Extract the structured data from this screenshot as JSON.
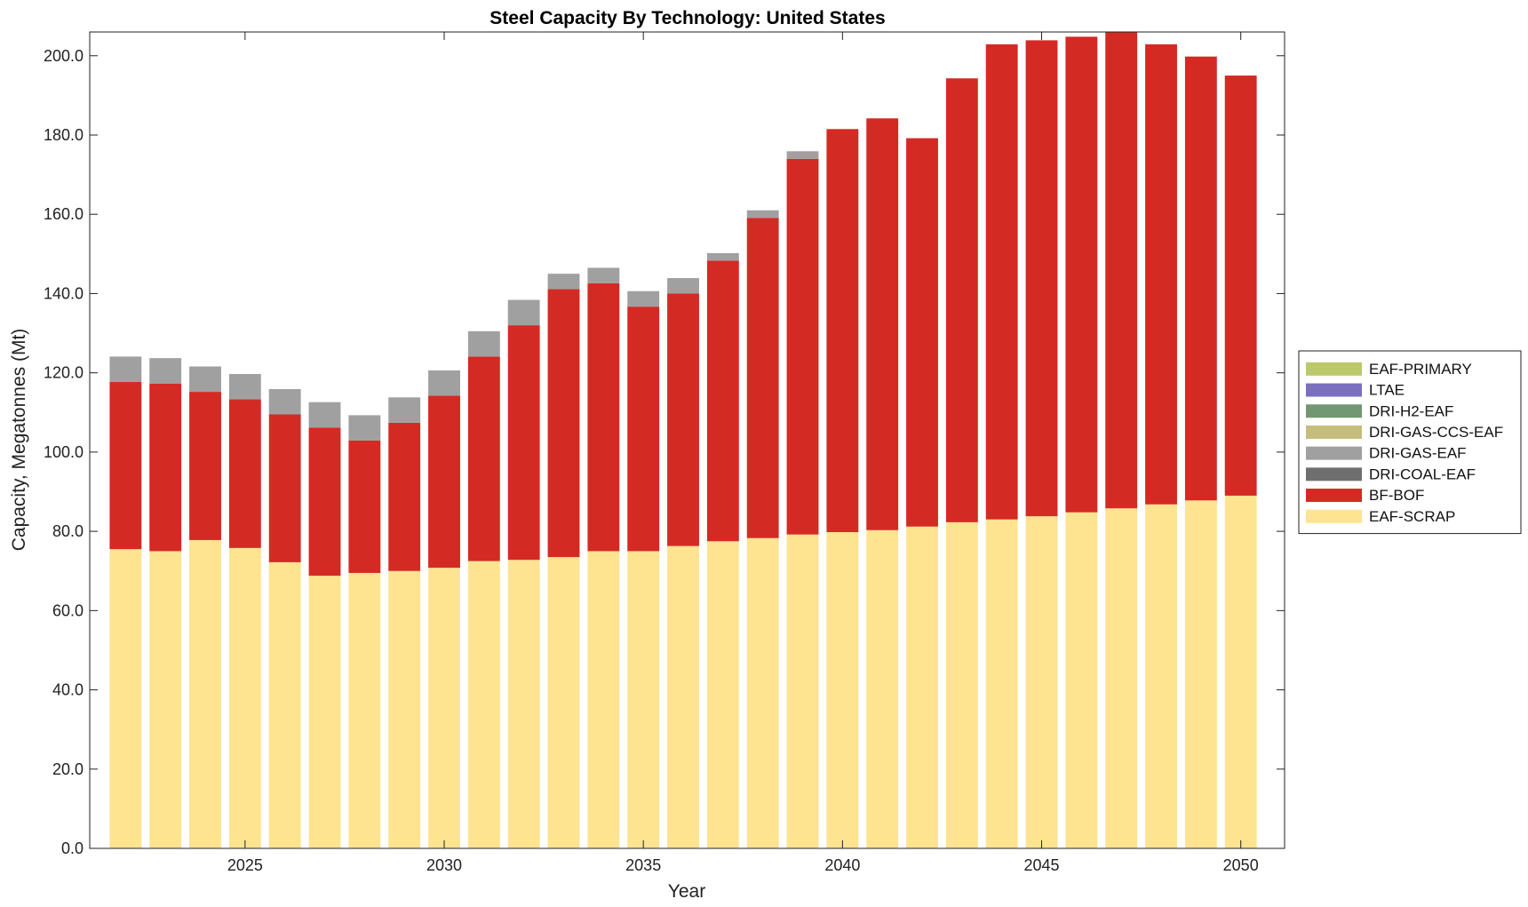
{
  "chart_data": {
    "type": "bar",
    "stacked": true,
    "title": "Steel Capacity By Technology: United States",
    "xlabel": "Year",
    "ylabel": "Capacity, Megatonnes (Mt)",
    "ylim": [
      0,
      206
    ],
    "yticks": [
      0,
      20,
      40,
      60,
      80,
      100,
      120,
      140,
      160,
      180,
      200
    ],
    "ytick_labels": [
      "0.0",
      "20.0",
      "40.0",
      "60.0",
      "80.0",
      "100.0",
      "120.0",
      "140.0",
      "160.0",
      "180.0",
      "200.0"
    ],
    "xlim": [
      2021.1,
      2051.1
    ],
    "xticks": [
      2025,
      2030,
      2035,
      2040,
      2045,
      2050
    ],
    "xtick_labels": [
      "2025",
      "2030",
      "2035",
      "2040",
      "2045",
      "2050"
    ],
    "grid": false,
    "legend_position": "right",
    "x": [
      2022,
      2023,
      2024,
      2025,
      2026,
      2027,
      2028,
      2029,
      2030,
      2031,
      2032,
      2033,
      2034,
      2035,
      2036,
      2037,
      2038,
      2039,
      2040,
      2041,
      2042,
      2043,
      2044,
      2045,
      2046,
      2047,
      2048,
      2049,
      2050
    ],
    "series": [
      {
        "name": "EAF-SCRAP",
        "color": "#fee391",
        "values": [
          75.5,
          75.0,
          77.8,
          75.8,
          72.2,
          68.8,
          69.5,
          70.0,
          70.8,
          72.5,
          72.8,
          73.5,
          75.0,
          75.0,
          76.3,
          77.5,
          78.3,
          79.2,
          79.8,
          80.3,
          81.2,
          82.3,
          83.0,
          83.8,
          84.8,
          85.8,
          86.8,
          87.8,
          89.0
        ]
      },
      {
        "name": "BF-BOF",
        "color": "#d42a24",
        "values": [
          42.2,
          42.3,
          37.4,
          37.5,
          37.3,
          37.4,
          33.4,
          37.4,
          43.4,
          51.6,
          59.2,
          67.6,
          67.6,
          61.7,
          63.7,
          70.8,
          80.8,
          94.8,
          101.7,
          103.9,
          98.0,
          112.0,
          119.9,
          120.1,
          120.0,
          120.1,
          116.1,
          112.0,
          106.0
        ]
      },
      {
        "name": "DRI-COAL-EAF",
        "color": "#6f6f6f",
        "values": [
          0,
          0,
          0,
          0,
          0,
          0,
          0,
          0,
          0,
          0,
          0,
          0,
          0,
          0,
          0,
          0,
          0,
          0,
          0,
          0,
          0,
          0,
          0,
          0,
          0,
          0,
          0,
          0,
          0
        ]
      },
      {
        "name": "DRI-GAS-EAF",
        "color": "#a0a0a0",
        "values": [
          6.4,
          6.4,
          6.4,
          6.4,
          6.4,
          6.4,
          6.4,
          6.4,
          6.4,
          6.4,
          6.4,
          3.9,
          3.9,
          3.9,
          3.9,
          1.9,
          1.9,
          1.9,
          0,
          0,
          0,
          0,
          0,
          0,
          0,
          0,
          0,
          0,
          0
        ]
      },
      {
        "name": "DRI-GAS-CCS-EAF",
        "color": "#c6bc7c",
        "values": [
          0,
          0,
          0,
          0,
          0,
          0,
          0,
          0,
          0,
          0,
          0,
          0,
          0,
          0,
          0,
          0,
          0,
          0,
          0,
          0,
          0,
          0,
          0,
          0,
          0,
          0,
          0,
          0,
          0
        ]
      },
      {
        "name": "DRI-H2-EAF",
        "color": "#739673",
        "values": [
          0,
          0,
          0,
          0,
          0,
          0,
          0,
          0,
          0,
          0,
          0,
          0,
          0,
          0,
          0,
          0,
          0,
          0,
          0,
          0,
          0,
          0,
          0,
          0,
          0,
          0,
          0,
          0,
          0
        ]
      },
      {
        "name": "LTAE",
        "color": "#7b6fc0",
        "values": [
          0,
          0,
          0,
          0,
          0,
          0,
          0,
          0,
          0,
          0,
          0,
          0,
          0,
          0,
          0,
          0,
          0,
          0,
          0,
          0,
          0,
          0,
          0,
          0,
          0,
          0,
          0,
          0,
          0
        ]
      },
      {
        "name": "EAF-PRIMARY",
        "color": "#bcc96a",
        "values": [
          0,
          0,
          0,
          0,
          0,
          0,
          0,
          0,
          0,
          0,
          0,
          0,
          0,
          0,
          0,
          0,
          0,
          0,
          0,
          0,
          0,
          0,
          0,
          0,
          0,
          0,
          0,
          0,
          0
        ]
      }
    ],
    "legend_order": [
      "EAF-PRIMARY",
      "LTAE",
      "DRI-H2-EAF",
      "DRI-GAS-CCS-EAF",
      "DRI-GAS-EAF",
      "DRI-COAL-EAF",
      "BF-BOF",
      "EAF-SCRAP"
    ]
  }
}
